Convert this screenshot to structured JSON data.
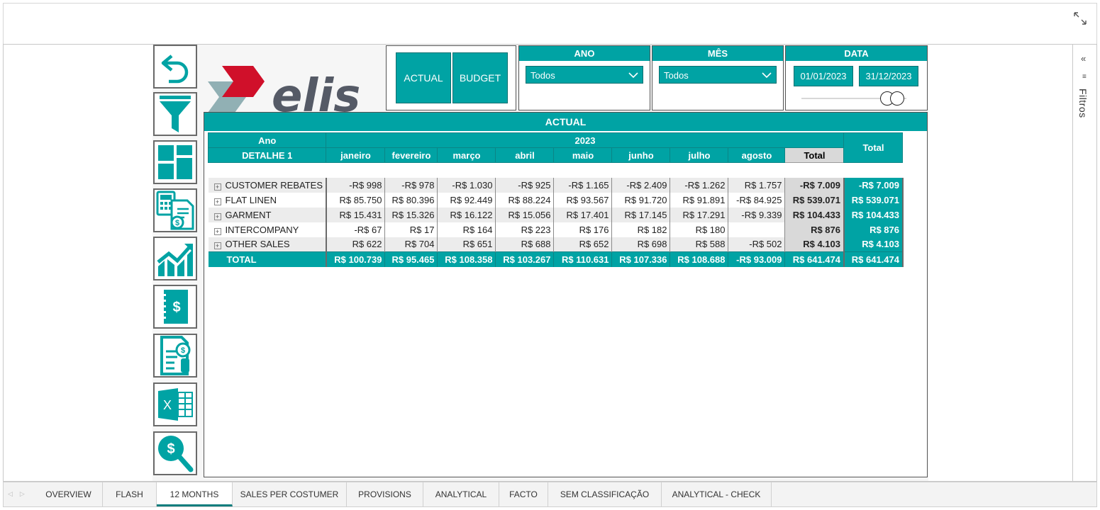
{
  "nav": {
    "icons": [
      "back-icon",
      "filter-icon",
      "dashboard-icon",
      "calculator-document-icon",
      "growth-chart-icon",
      "invoice-dollar-icon",
      "document-coin-icon",
      "excel-icon",
      "dollar-search-icon"
    ]
  },
  "logo": {
    "text": "elis"
  },
  "scenario": {
    "actual_label": "ACTUAL",
    "budget_label": "BUDGET"
  },
  "slicers": {
    "ano": {
      "title": "ANO",
      "value": "Todos"
    },
    "mes": {
      "title": "MÊS",
      "value": "Todos"
    },
    "data": {
      "title": "DATA",
      "start": "01/01/2023",
      "end": "31/12/2023"
    }
  },
  "matrix": {
    "title": "ACTUAL",
    "corner_year_label": "Ano",
    "corner_detail_label": "DETALHE 1",
    "year": "2023",
    "grand_total_label": "Total",
    "year_total_label": "Total",
    "months": [
      "janeiro",
      "fevereiro",
      "março",
      "abril",
      "maio",
      "junho",
      "julho",
      "agosto"
    ],
    "rows": [
      {
        "label": "CUSTOMER REBATES",
        "values": [
          "-R$ 998",
          "-R$ 978",
          "-R$ 1.030",
          "-R$ 925",
          "-R$ 1.165",
          "-R$ 2.409",
          "-R$ 1.262",
          "R$ 1.757"
        ],
        "year_total": "-R$ 7.009",
        "grand_total": "-R$ 7.009"
      },
      {
        "label": "FLAT LINEN",
        "values": [
          "R$ 85.750",
          "R$ 80.396",
          "R$ 92.449",
          "R$ 88.224",
          "R$ 93.567",
          "R$ 91.720",
          "R$ 91.891",
          "-R$ 84.925"
        ],
        "year_total": "R$ 539.071",
        "grand_total": "R$ 539.071"
      },
      {
        "label": "GARMENT",
        "values": [
          "R$ 15.431",
          "R$ 15.326",
          "R$ 16.122",
          "R$ 15.056",
          "R$ 17.401",
          "R$ 17.145",
          "R$ 17.291",
          "-R$ 9.339"
        ],
        "year_total": "R$ 104.433",
        "grand_total": "R$ 104.433"
      },
      {
        "label": "INTERCOMPANY",
        "values": [
          "-R$ 67",
          "R$ 17",
          "R$ 164",
          "R$ 223",
          "R$ 176",
          "R$ 182",
          "R$ 180",
          ""
        ],
        "year_total": "R$ 876",
        "grand_total": "R$ 876"
      },
      {
        "label": "OTHER SALES",
        "values": [
          "R$ 622",
          "R$ 704",
          "R$ 651",
          "R$ 688",
          "R$ 652",
          "R$ 698",
          "R$ 588",
          "-R$ 502"
        ],
        "year_total": "R$ 4.103",
        "grand_total": "R$ 4.103"
      }
    ],
    "total_row": {
      "label": "TOTAL",
      "values": [
        "R$ 100.739",
        "R$ 95.465",
        "R$ 108.358",
        "R$ 103.267",
        "R$ 110.631",
        "R$ 107.336",
        "R$ 108.688",
        "-R$ 93.009"
      ],
      "year_total": "R$ 641.474",
      "grand_total": "R$ 641.474"
    }
  },
  "filter_pane": {
    "label": "Filtros"
  },
  "tabs": [
    {
      "label": "OVERVIEW",
      "active": false
    },
    {
      "label": "FLASH",
      "active": false
    },
    {
      "label": "12 MONTHS",
      "active": true
    },
    {
      "label": "SALES PER COSTUMER",
      "active": false
    },
    {
      "label": "PROVISIONS",
      "active": false
    },
    {
      "label": "ANALYTICAL",
      "active": false
    },
    {
      "label": "FACTO",
      "active": false
    },
    {
      "label": "SEM CLASSIFICAÇÃO",
      "active": false
    },
    {
      "label": "ANALYTICAL - CHECK",
      "active": false
    }
  ],
  "colors": {
    "accent": "#00a3a4",
    "logo_red": "#d0102a",
    "logo_gray": "#555a66"
  }
}
